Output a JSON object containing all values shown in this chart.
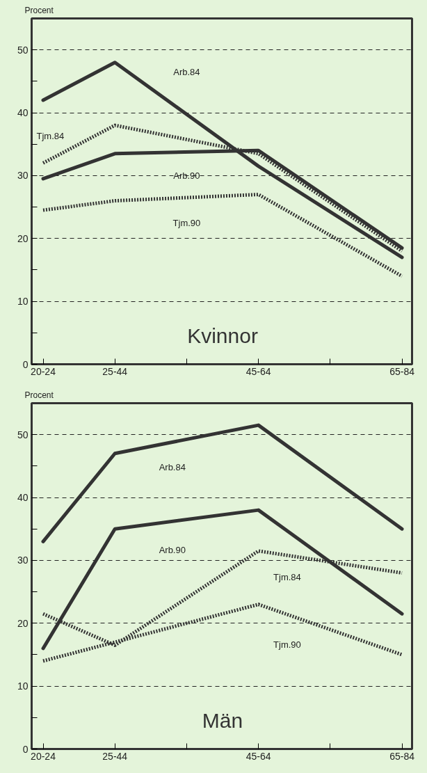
{
  "chart_data": [
    {
      "type": "line",
      "title": "Kvinnor",
      "ylabel": "Procent",
      "categories": [
        "20-24",
        "25-44",
        null,
        "45-64",
        null,
        "65-84"
      ],
      "ylim": [
        0,
        55
      ],
      "yticks": [
        0,
        {
          "value": 5,
          "label": null
        },
        10,
        {
          "value": 15,
          "label": null
        },
        20,
        {
          "value": 25,
          "label": null
        },
        30,
        {
          "value": 35,
          "label": null
        },
        40,
        {
          "value": 45,
          "label": null
        },
        50
      ],
      "grid": "y",
      "marker": "none",
      "series": [
        {
          "name": "Arb.84",
          "color": "#333333",
          "line_style": "solid",
          "values": [
            42,
            48,
            null,
            31.5,
            null,
            17
          ]
        },
        {
          "name": "Tjm.84",
          "color": "#333333",
          "line_style": "dotted",
          "values": [
            32,
            38,
            null,
            33.5,
            null,
            18
          ]
        },
        {
          "name": "Arb.90",
          "color": "#333333",
          "line_style": "solid",
          "values": [
            29.5,
            33.5,
            null,
            34,
            null,
            18.5
          ]
        },
        {
          "name": "Tjm.90",
          "color": "#333333",
          "line_style": "dotted",
          "values": [
            24.5,
            26,
            null,
            27,
            null,
            14
          ]
        }
      ]
    },
    {
      "type": "line",
      "title": "Män",
      "ylabel": "Procent",
      "categories": [
        "20-24",
        "25-44",
        null,
        "45-64",
        null,
        "65-84"
      ],
      "ylim": [
        0,
        55
      ],
      "yticks": [
        0,
        {
          "value": 5,
          "label": null
        },
        10,
        {
          "value": 15,
          "label": null
        },
        20,
        {
          "value": 25,
          "label": null
        },
        30,
        {
          "value": 35,
          "label": null
        },
        40,
        {
          "value": 45,
          "label": null
        },
        50
      ],
      "grid": "y",
      "marker": "none",
      "series": [
        {
          "name": "Arb.84",
          "color": "#333333",
          "line_style": "solid",
          "values": [
            33,
            47,
            null,
            51.5,
            null,
            35
          ]
        },
        {
          "name": "Arb.90",
          "color": "#333333",
          "line_style": "solid",
          "values": [
            16,
            35,
            null,
            38,
            null,
            21.5
          ]
        },
        {
          "name": "Tjm.84",
          "color": "#333333",
          "line_style": "dotted",
          "values": [
            21.5,
            16.5,
            null,
            31.5,
            null,
            28
          ]
        },
        {
          "name": "Tjm.90",
          "color": "#333333",
          "line_style": "dotted",
          "values": [
            14,
            17,
            null,
            23,
            null,
            15
          ]
        }
      ]
    }
  ]
}
